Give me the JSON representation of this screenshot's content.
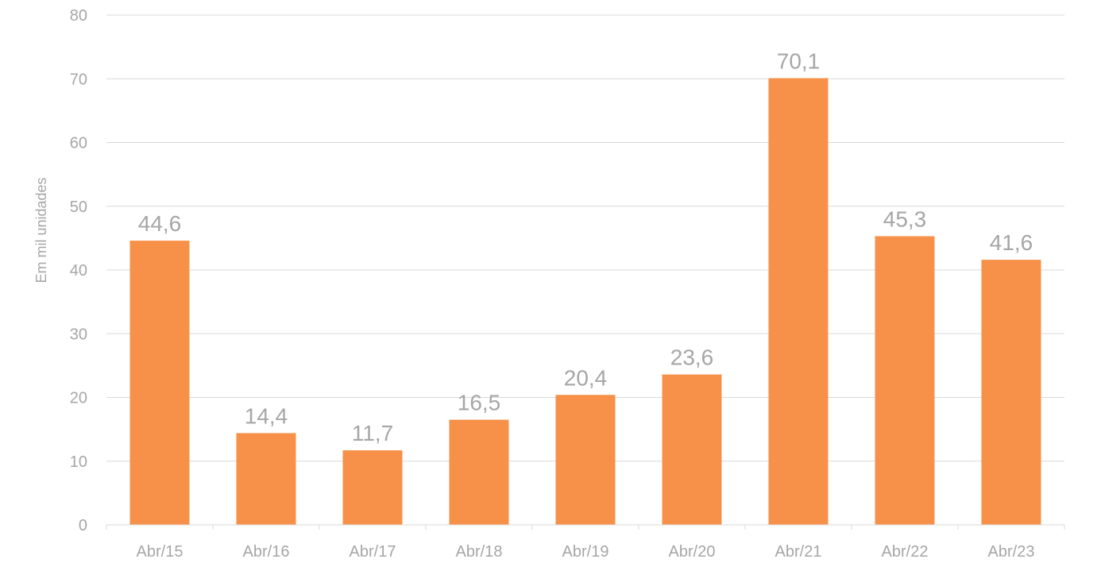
{
  "chart_data": {
    "type": "bar",
    "title": "",
    "xlabel": "",
    "ylabel": "Em mil unidades",
    "categories": [
      "Abr/15",
      "Abr/16",
      "Abr/17",
      "Abr/18",
      "Abr/19",
      "Abr/20",
      "Abr/21",
      "Abr/22",
      "Abr/23"
    ],
    "values": [
      44.6,
      14.4,
      11.7,
      16.5,
      20.4,
      23.6,
      70.1,
      45.3,
      41.6
    ],
    "value_labels": [
      "44,6",
      "14,4",
      "11,7",
      "16,5",
      "20,4",
      "23,6",
      "70,1",
      "45,3",
      "41,6"
    ],
    "ylim": [
      0,
      80
    ],
    "yticks": [
      0,
      10,
      20,
      30,
      40,
      50,
      60,
      70,
      80
    ],
    "grid": true,
    "legend": "none",
    "colors": {
      "bar": "#F79149",
      "grid": "#d9d9d9",
      "axis": "#d9d9d9",
      "text": "#a6a6a6"
    }
  }
}
